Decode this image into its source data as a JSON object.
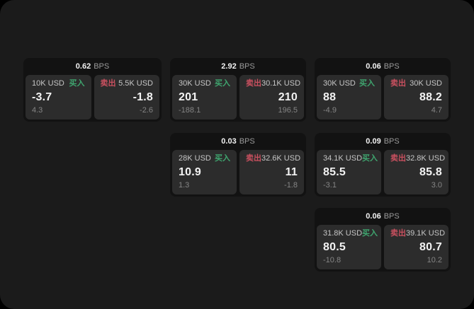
{
  "colors": {
    "surface": "#1b1b1b",
    "card_bg": "#121212",
    "panel_bg": "#2c2c2c",
    "buy_green": "#3fa56f",
    "sell_red": "#c9505f"
  },
  "cards": [
    {
      "bps_value": "0.62",
      "bps_unit": "BPS",
      "buy": {
        "amount": "10K USD",
        "side_label": "买入",
        "value": "-3.7",
        "sub_value": "4.3"
      },
      "sell": {
        "side_label": "卖出",
        "amount": "5.5K USD",
        "value": "-1.8",
        "sub_value": "-2.6"
      }
    },
    {
      "bps_value": "2.92",
      "bps_unit": "BPS",
      "buy": {
        "amount": "30K USD",
        "side_label": "买入",
        "value": "201",
        "sub_value": "-188.1"
      },
      "sell": {
        "side_label": "卖出",
        "amount": "30.1K USD",
        "value": "210",
        "sub_value": "196.5"
      }
    },
    {
      "bps_value": "0.06",
      "bps_unit": "BPS",
      "buy": {
        "amount": "30K USD",
        "side_label": "买入",
        "value": "88",
        "sub_value": "-4.9"
      },
      "sell": {
        "side_label": "卖出",
        "amount": "30K USD",
        "value": "88.2",
        "sub_value": "4.7"
      }
    },
    {
      "bps_value": "0.03",
      "bps_unit": "BPS",
      "buy": {
        "amount": "28K USD",
        "side_label": "买入",
        "value": "10.9",
        "sub_value": "1.3"
      },
      "sell": {
        "side_label": "卖出",
        "amount": "32.6K USD",
        "value": "11",
        "sub_value": "-1.8"
      }
    },
    {
      "bps_value": "0.09",
      "bps_unit": "BPS",
      "buy": {
        "amount": "34.1K USD",
        "side_label": "买入",
        "value": "85.5",
        "sub_value": "-3.1"
      },
      "sell": {
        "side_label": "卖出",
        "amount": "32.8K USD",
        "value": "85.8",
        "sub_value": "3.0"
      }
    },
    {
      "bps_value": "0.06",
      "bps_unit": "BPS",
      "buy": {
        "amount": "31.8K USD",
        "side_label": "买入",
        "value": "80.5",
        "sub_value": "-10.8"
      },
      "sell": {
        "side_label": "卖出",
        "amount": "39.1K USD",
        "value": "80.7",
        "sub_value": "10.2"
      }
    }
  ]
}
